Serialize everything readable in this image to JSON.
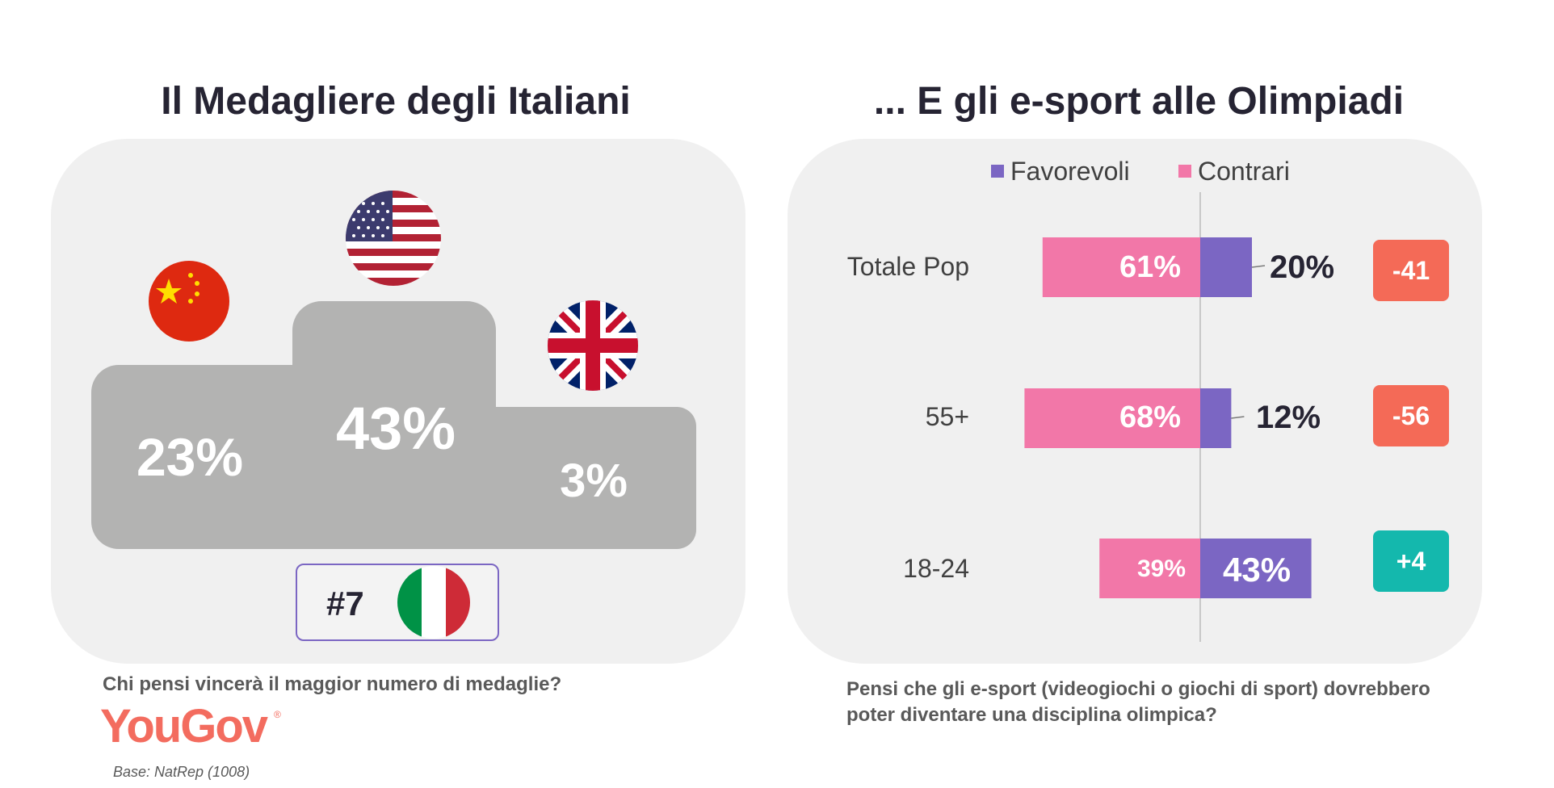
{
  "left": {
    "title": "Il Medagliere degli Italiani",
    "podium": [
      {
        "country": "China",
        "flag": "china-flag",
        "value": "23%"
      },
      {
        "country": "USA",
        "flag": "usa-flag",
        "value": "43%"
      },
      {
        "country": "UK",
        "flag": "uk-flag",
        "value": "3%"
      }
    ],
    "italy_rank": "#7",
    "question": "Chi pensi vincerà il maggior numero di medaglie?",
    "logo": "YouGov",
    "base": "Base: NatRep (1008)"
  },
  "right": {
    "title": "... E gli e-sport alle Olimpiadi",
    "question_line1": "Pensi che gli e-sport (videogiochi o giochi di sport) dovrebbero",
    "question_line2": "poter diventare una disciplina olimpica?"
  },
  "colors": {
    "favorevoli": "#7b66c3",
    "contrari": "#f277a8",
    "net_negative": "#f46a57",
    "net_positive": "#14b8ad",
    "podium": "#b3b3b2",
    "panel": "#f0f0f0"
  },
  "chart_data": {
    "type": "bar",
    "orientation": "horizontal-diverging",
    "categories": [
      "Totale Pop",
      "55+",
      "18-24"
    ],
    "series": [
      {
        "name": "Favorevoli",
        "values": [
          20,
          12,
          43
        ],
        "labels": [
          "20%",
          "12%",
          "43%"
        ]
      },
      {
        "name": "Contrari",
        "values": [
          61,
          68,
          39
        ],
        "labels": [
          "61%",
          "68%",
          "39%"
        ]
      }
    ],
    "net": [
      "-41",
      "-56",
      "+4"
    ],
    "legend_position": "top",
    "grid": false
  }
}
